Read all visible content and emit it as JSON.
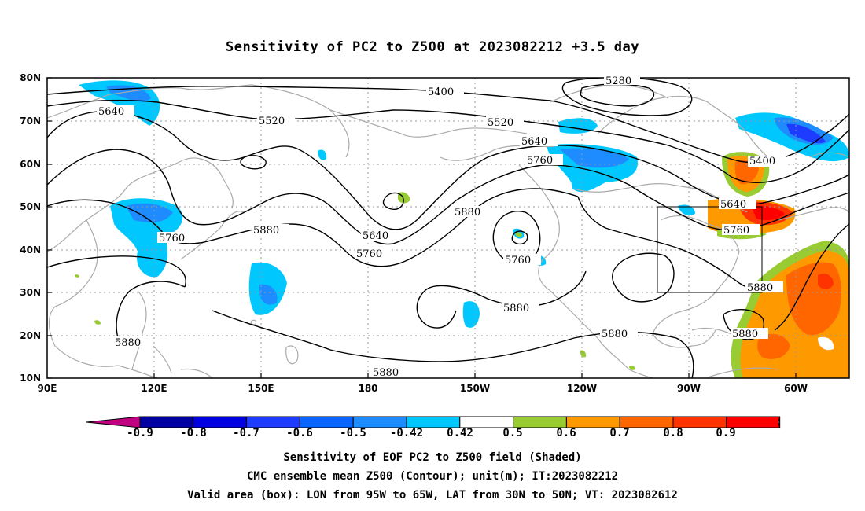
{
  "title": "Sensitivity of PC2 to Z500 at 2023082212 +3.5 day",
  "lat_labels": [
    "80N",
    "70N",
    "60N",
    "50N",
    "40N",
    "30N",
    "20N",
    "10N"
  ],
  "lon_labels": [
    "90E",
    "120E",
    "150E",
    "180",
    "150W",
    "120W",
    "90W",
    "60W"
  ],
  "contour_labels": {
    "c5280": "5280",
    "c5400a": "5400",
    "c5400b": "5400",
    "c5520a": "5520",
    "c5520b": "5520",
    "c5640a": "5640",
    "c5640b": "5640",
    "c5640c": "5640",
    "c5640d": "5640",
    "c5760a": "5760",
    "c5760b": "5760",
    "c5760c": "5760",
    "c5760d": "5760",
    "c5760e": "5760",
    "c5880a": "5880",
    "c5880b": "5880",
    "c5880c": "5880",
    "c5880d": "5880",
    "c5880e": "5880",
    "c5880f": "5880",
    "c5880g": "5880",
    "c5880h": "5880"
  },
  "colorbar": {
    "labels": [
      "-0.9",
      "-0.8",
      "-0.7",
      "-0.6",
      "-0.5",
      "-0.42",
      "0.42",
      "0.5",
      "0.6",
      "0.7",
      "0.8",
      "0.9"
    ],
    "colors": [
      "#c00080",
      "#0000a0",
      "#0000e0",
      "#1e3cff",
      "#0a64ff",
      "#1e8cff",
      "#00c8ff",
      "#ffffff",
      "#99cc33",
      "#ff9900",
      "#ff6600",
      "#ff3300",
      "#ff0000",
      "#ff99cc"
    ]
  },
  "footer": {
    "line1": "Sensitivity of EOF PC2 to Z500 field (Shaded)",
    "line2": "CMC ensemble mean Z500 (Contour); unit(m); IT:2023082212",
    "line3": "Valid area (box): LON from 95W to 65W, LAT from 30N to 50N; VT: 2023082612"
  }
}
